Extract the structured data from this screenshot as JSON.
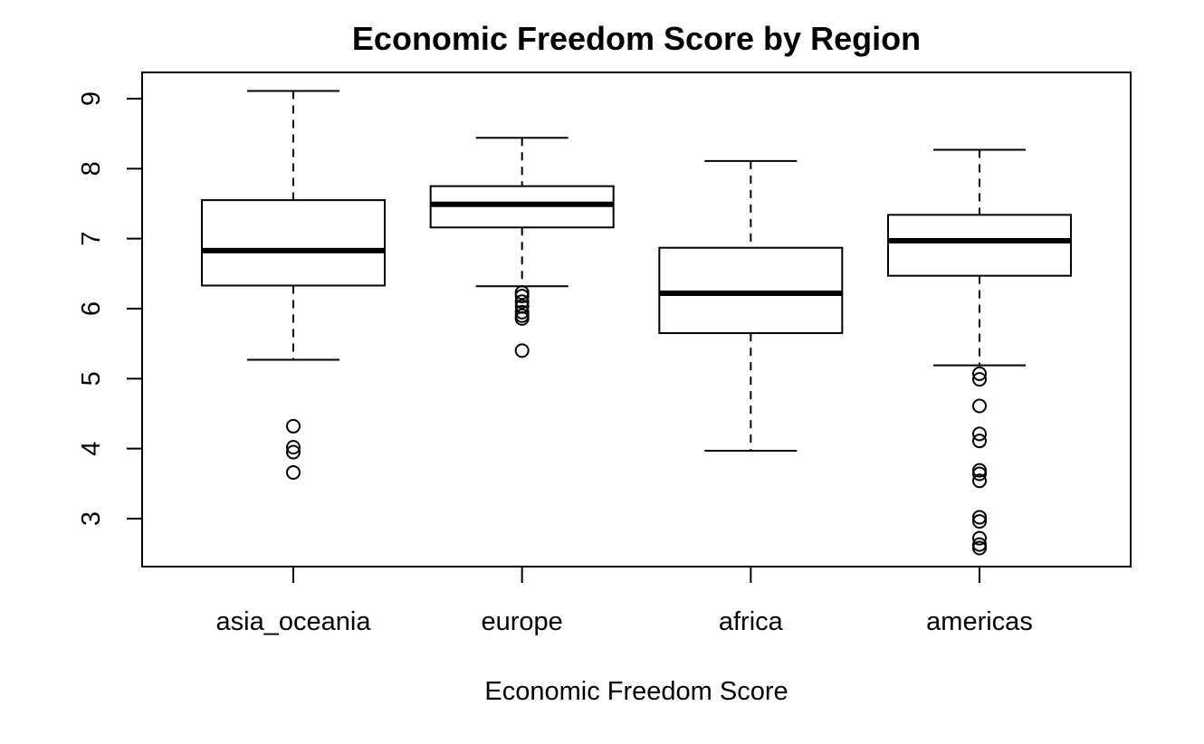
{
  "chart_data": {
    "type": "boxplot",
    "title": "Economic Freedom Score by Region",
    "xlabel": "Economic Freedom Score",
    "ylabel": "",
    "ylim": [
      2.35,
      9.3
    ],
    "yticks": [
      3,
      4,
      5,
      6,
      7,
      8,
      9
    ],
    "grid": false,
    "legend": "none",
    "categories": [
      "asia_oceania",
      "europe",
      "africa",
      "americas"
    ],
    "boxes": [
      {
        "category": "asia_oceania",
        "whisker_low": 5.27,
        "q1": 6.33,
        "median": 6.83,
        "q3": 7.55,
        "whisker_high": 9.11,
        "outliers": [
          4.32,
          4.02,
          3.95,
          3.66
        ]
      },
      {
        "category": "europe",
        "whisker_low": 6.32,
        "q1": 7.16,
        "median": 7.49,
        "q3": 7.75,
        "whisker_high": 8.44,
        "outliers": [
          6.23,
          6.18,
          6.1,
          6.03,
          5.95,
          5.9,
          5.86,
          5.4
        ]
      },
      {
        "category": "africa",
        "whisker_low": 3.97,
        "q1": 5.65,
        "median": 6.22,
        "q3": 6.87,
        "whisker_high": 8.11,
        "outliers": []
      },
      {
        "category": "americas",
        "whisker_low": 5.19,
        "q1": 6.47,
        "median": 6.97,
        "q3": 7.34,
        "whisker_high": 8.27,
        "outliers": [
          5.07,
          4.99,
          4.61,
          4.21,
          4.11,
          3.69,
          3.64,
          3.54,
          3.02,
          2.96,
          2.72,
          2.63,
          2.58
        ]
      }
    ]
  }
}
